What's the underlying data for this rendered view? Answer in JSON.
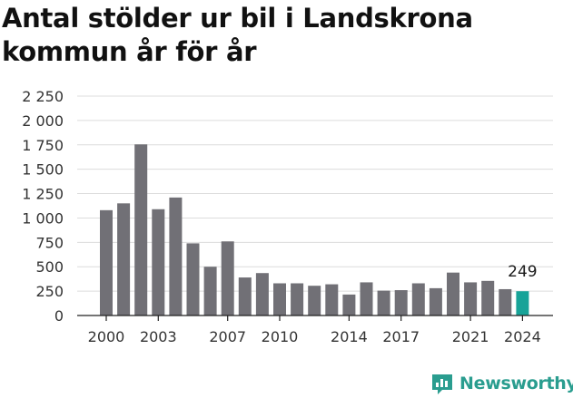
{
  "page": {
    "title": "Antal stölder ur bil i Landskrona kommun år för år"
  },
  "brand": {
    "name": "Newsworthy",
    "icon": "newsworthy-logo-icon",
    "color": "#2a9d8f"
  },
  "chart_data": {
    "type": "bar",
    "title": "Antal stölder ur bil i Landskrona kommun år för år",
    "xlabel": "",
    "ylabel": "",
    "categories": [
      "2000",
      "2001",
      "2002",
      "2003",
      "2004",
      "2005",
      "2006",
      "2007",
      "2008",
      "2009",
      "2010",
      "2011",
      "2012",
      "2013",
      "2014",
      "2015",
      "2016",
      "2017",
      "2018",
      "2019",
      "2020",
      "2021",
      "2022",
      "2023",
      "2024"
    ],
    "values": [
      1080,
      1150,
      1755,
      1090,
      1210,
      740,
      500,
      760,
      390,
      435,
      330,
      330,
      305,
      320,
      215,
      340,
      255,
      260,
      330,
      280,
      440,
      340,
      355,
      270,
      249
    ],
    "x_tick_labels": [
      "2000",
      "2003",
      "2007",
      "2010",
      "2014",
      "2017",
      "2021",
      "2024"
    ],
    "y_ticks": [
      0,
      250,
      500,
      750,
      1000,
      1250,
      1500,
      1750,
      2000,
      2250
    ],
    "y_tick_labels": [
      "0",
      "250",
      "500",
      "750",
      "1 000",
      "1 250",
      "1 500",
      "1 750",
      "2 000",
      "2 250"
    ],
    "ylim": [
      0,
      2250
    ],
    "grid": true,
    "bar_color": "#717076",
    "highlight_color": "#17a398",
    "highlight_category": "2024",
    "highlight_label": "249"
  }
}
